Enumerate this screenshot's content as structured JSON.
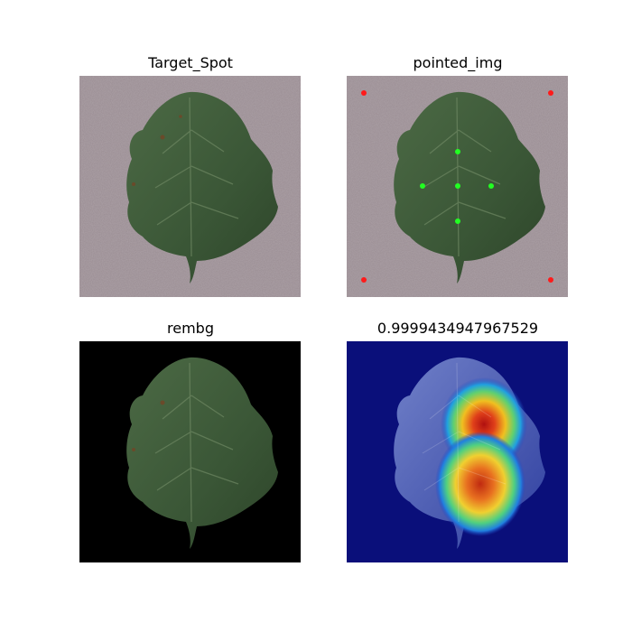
{
  "figure": {
    "panels": [
      {
        "title": "Target_Spot"
      },
      {
        "title": "pointed_img"
      },
      {
        "title": "rembg"
      },
      {
        "title": "0.9999434947967529"
      }
    ],
    "background_colors": {
      "mat": "#9a8d93",
      "black": "#000000",
      "heat_base": "#0a0f7a"
    },
    "leaf_color": "#3f5e3a",
    "marker_colors": {
      "corner": "#ff1a1a",
      "center": "#22ff22"
    }
  }
}
